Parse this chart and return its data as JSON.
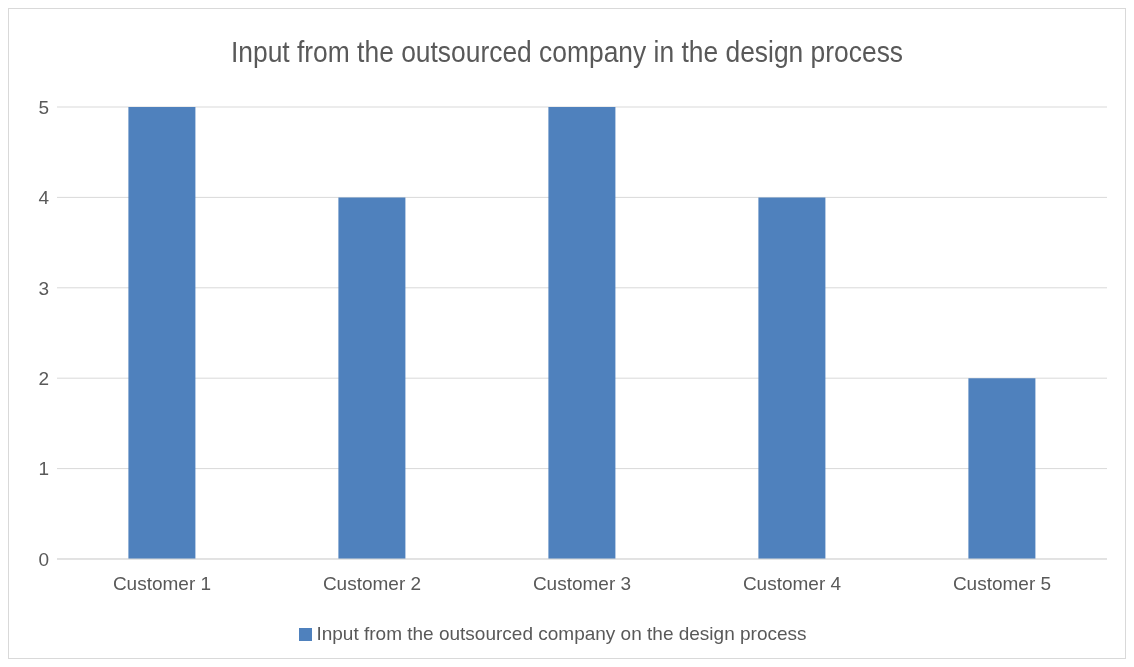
{
  "chart_data": {
    "type": "bar",
    "title": "Input from the outsourced company in the design process",
    "categories": [
      "Customer 1",
      "Customer 2",
      "Customer 3",
      "Customer 4",
      "Customer 5"
    ],
    "series": [
      {
        "name": "Input from the outsourced company on the design process",
        "color": "#4f81bd",
        "values": [
          5,
          4,
          5,
          4,
          2
        ]
      }
    ],
    "ylim": [
      0,
      5
    ],
    "yticks": [
      0,
      1,
      2,
      3,
      4,
      5
    ],
    "grid": "y",
    "legend": "bottom"
  }
}
